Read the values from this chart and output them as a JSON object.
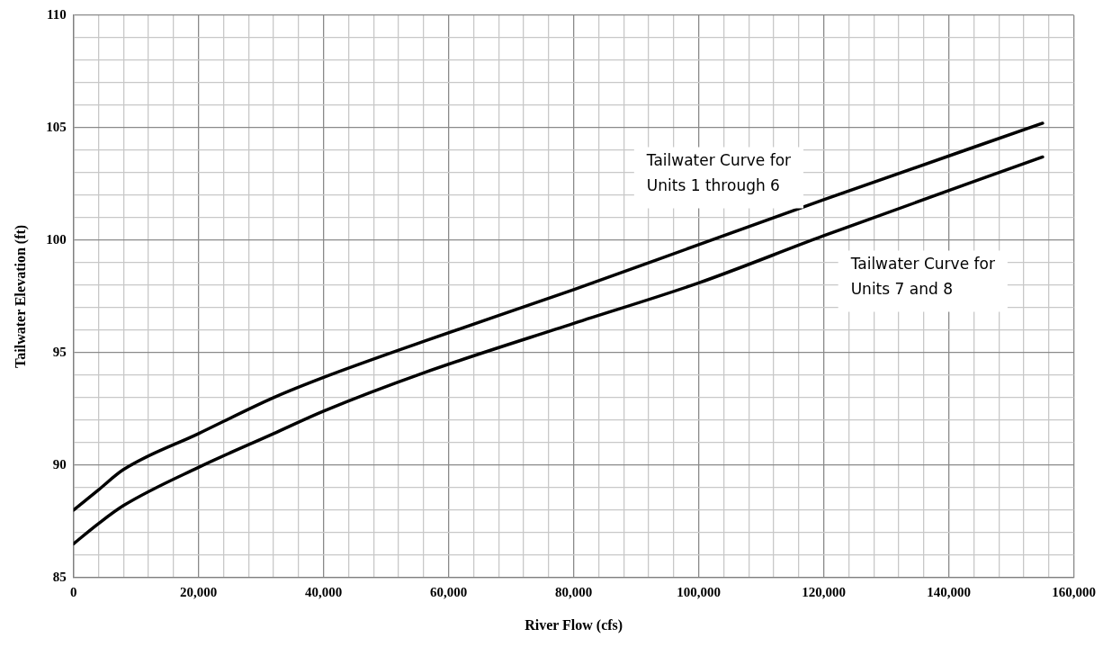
{
  "chart_data": {
    "type": "line",
    "xlabel": "River Flow (cfs)",
    "ylabel": "Tailwater Elevation (ft)",
    "xlim": [
      0,
      160000
    ],
    "ylim": [
      85,
      110
    ],
    "xticks": [
      {
        "value": 0,
        "label": "0"
      },
      {
        "value": 4000,
        "label": null
      },
      {
        "value": 8000,
        "label": null
      },
      {
        "value": 12000,
        "label": null
      },
      {
        "value": 16000,
        "label": null
      },
      {
        "value": 20000,
        "label": "20,000"
      },
      {
        "value": 24000,
        "label": null
      },
      {
        "value": 28000,
        "label": null
      },
      {
        "value": 32000,
        "label": null
      },
      {
        "value": 36000,
        "label": null
      },
      {
        "value": 40000,
        "label": "40,000"
      },
      {
        "value": 44000,
        "label": null
      },
      {
        "value": 48000,
        "label": null
      },
      {
        "value": 52000,
        "label": null
      },
      {
        "value": 56000,
        "label": null
      },
      {
        "value": 60000,
        "label": "60,000"
      },
      {
        "value": 64000,
        "label": null
      },
      {
        "value": 68000,
        "label": null
      },
      {
        "value": 72000,
        "label": null
      },
      {
        "value": 76000,
        "label": null
      },
      {
        "value": 80000,
        "label": "80,000"
      },
      {
        "value": 84000,
        "label": null
      },
      {
        "value": 88000,
        "label": null
      },
      {
        "value": 92000,
        "label": null
      },
      {
        "value": 96000,
        "label": null
      },
      {
        "value": 100000,
        "label": "100,000"
      },
      {
        "value": 104000,
        "label": null
      },
      {
        "value": 108000,
        "label": null
      },
      {
        "value": 112000,
        "label": null
      },
      {
        "value": 116000,
        "label": null
      },
      {
        "value": 120000,
        "label": "120,000"
      },
      {
        "value": 124000,
        "label": null
      },
      {
        "value": 128000,
        "label": null
      },
      {
        "value": 132000,
        "label": null
      },
      {
        "value": 136000,
        "label": null
      },
      {
        "value": 140000,
        "label": "140,000"
      },
      {
        "value": 144000,
        "label": null
      },
      {
        "value": 148000,
        "label": null
      },
      {
        "value": 152000,
        "label": null
      },
      {
        "value": 156000,
        "label": null
      },
      {
        "value": 160000,
        "label": "160,000"
      }
    ],
    "yticks": [
      85,
      {
        "value": 86,
        "label": null
      },
      {
        "value": 87,
        "label": null
      },
      {
        "value": 88,
        "label": null
      },
      {
        "value": 89,
        "label": null
      },
      90,
      {
        "value": 91,
        "label": null
      },
      {
        "value": 92,
        "label": null
      },
      {
        "value": 93,
        "label": null
      },
      {
        "value": 94,
        "label": null
      },
      95,
      {
        "value": 96,
        "label": null
      },
      {
        "value": 97,
        "label": null
      },
      {
        "value": 98,
        "label": null
      },
      {
        "value": 99,
        "label": null
      },
      100,
      {
        "value": 101,
        "label": null
      },
      {
        "value": 102,
        "label": null
      },
      {
        "value": 103,
        "label": null
      },
      {
        "value": 104,
        "label": null
      },
      105,
      {
        "value": 106,
        "label": null
      },
      {
        "value": 107,
        "label": null
      },
      {
        "value": 108,
        "label": null
      },
      {
        "value": 109,
        "label": null
      },
      110
    ],
    "grid": true,
    "legend": false,
    "marker": "none",
    "line_style": "solid",
    "x": [
      0,
      4000,
      8000,
      20000,
      32000,
      40000,
      56000,
      80000,
      100000,
      120000,
      155000
    ],
    "series": [
      {
        "name": "Tailwater Curve for\nUnits 1 through 6",
        "color": "#000000",
        "values": [
          88.0,
          88.9,
          89.8,
          91.4,
          93.0,
          93.9,
          95.5,
          97.8,
          99.8,
          101.8,
          105.2
        ]
      },
      {
        "name": "Tailwater Curve for\nUnits 7 and 8",
        "color": "#000000",
        "values": [
          86.5,
          87.4,
          88.2,
          89.9,
          91.4,
          92.4,
          94.1,
          96.3,
          98.1,
          100.2,
          103.7
        ]
      }
    ]
  }
}
